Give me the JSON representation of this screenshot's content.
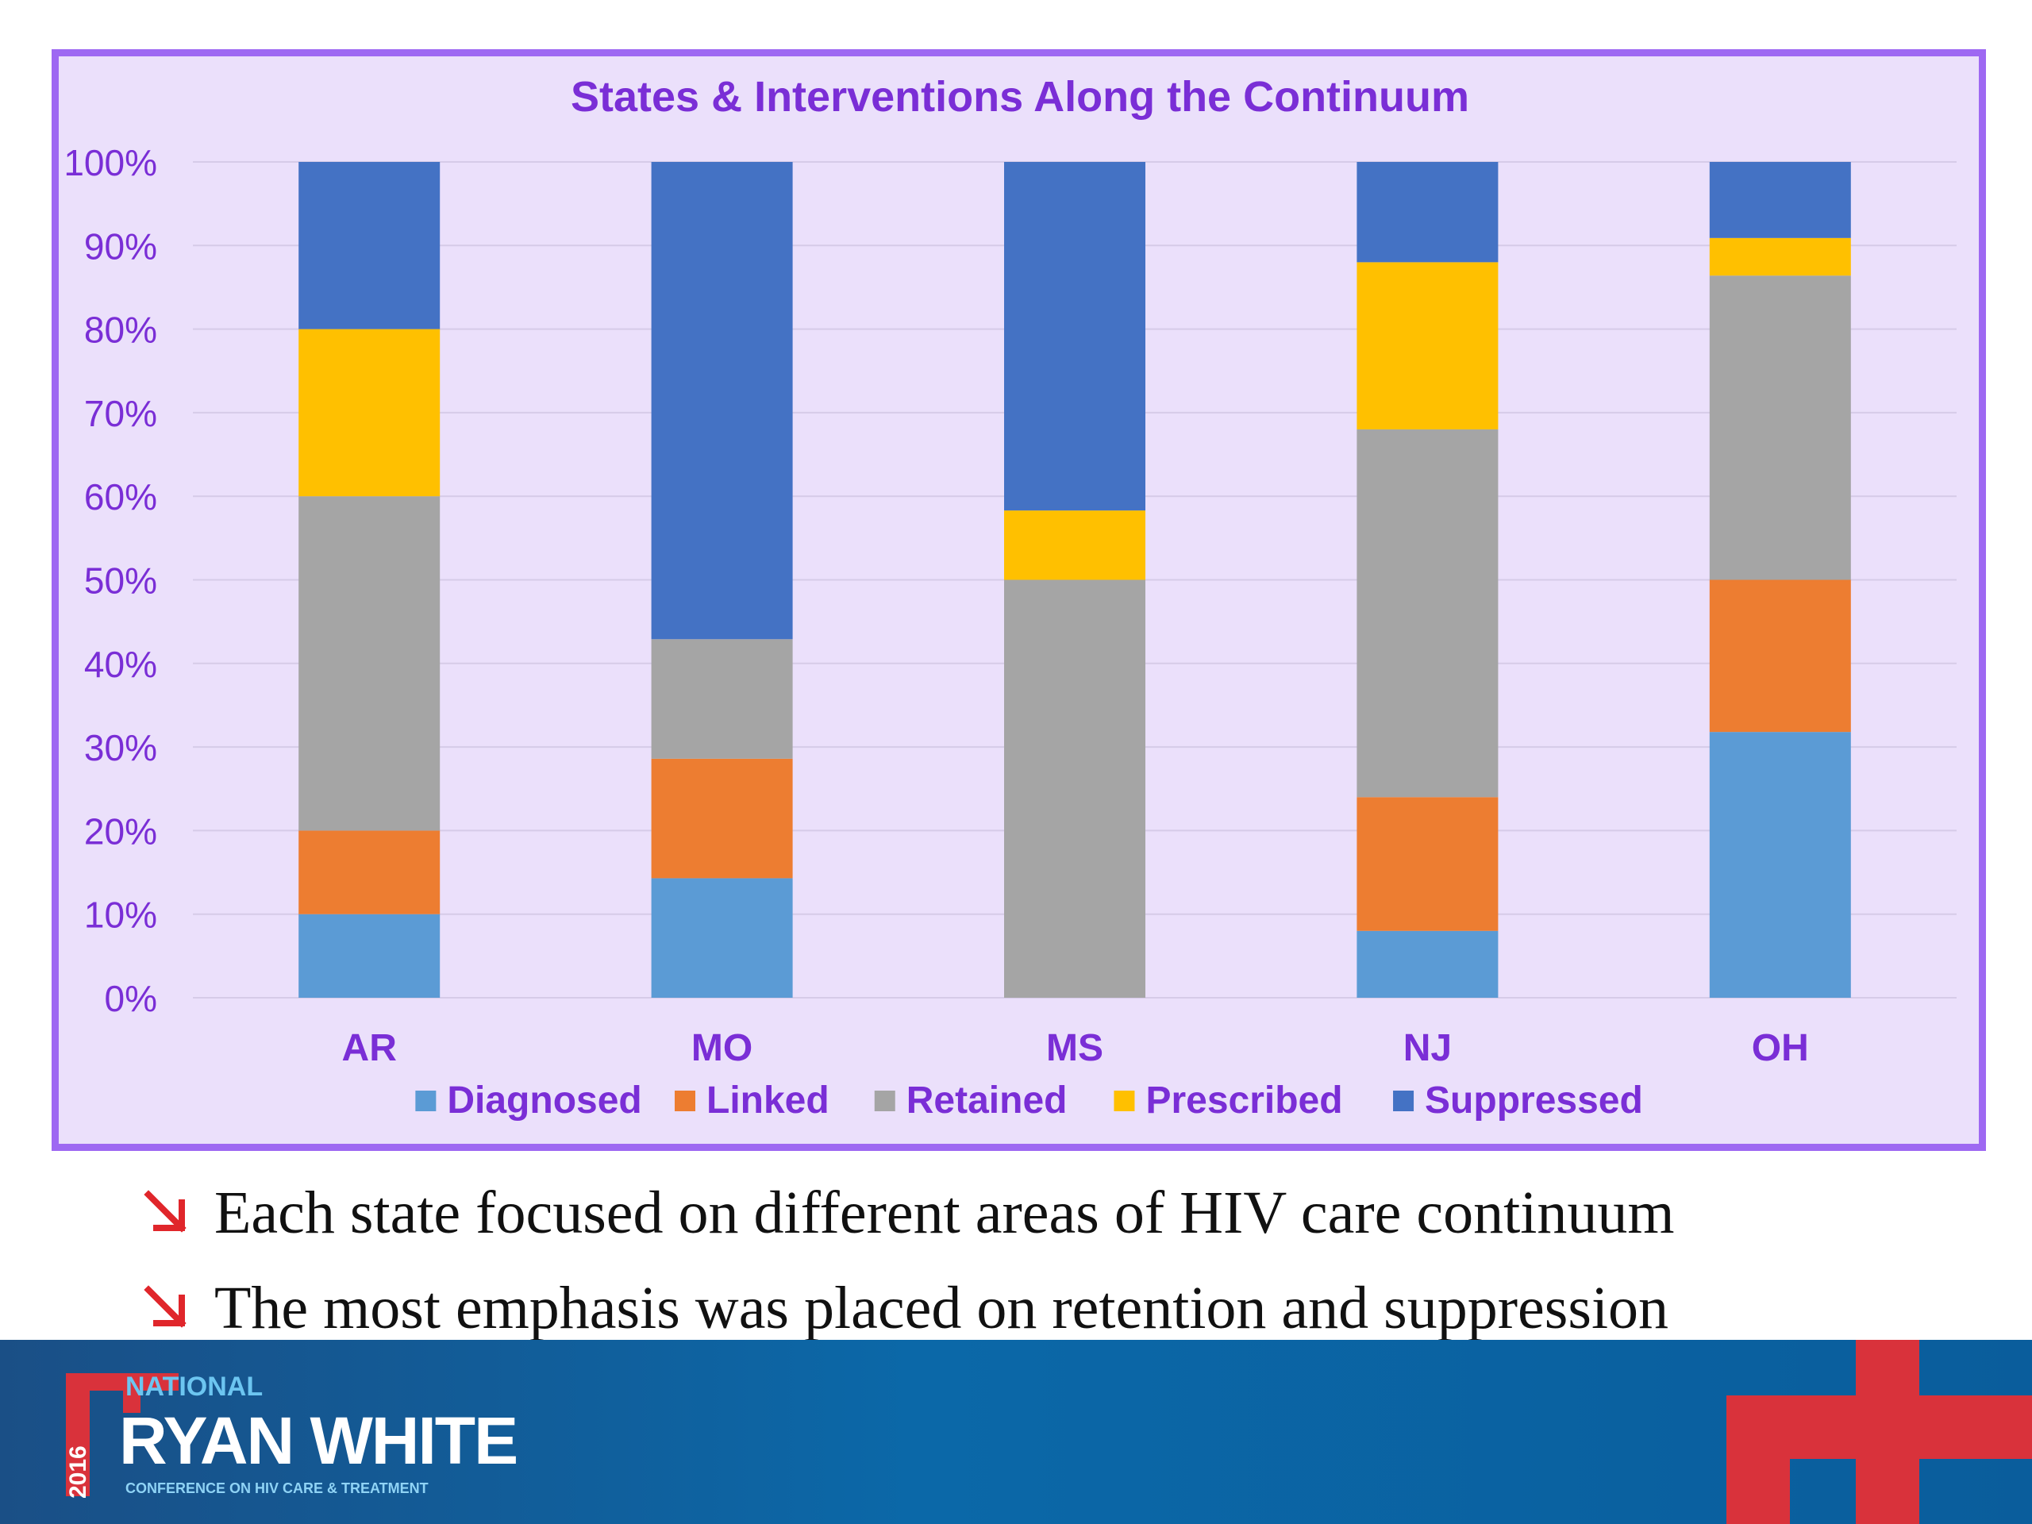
{
  "chart_data": {
    "type": "bar",
    "stacked": true,
    "title": "States & Interventions Along the Continuum",
    "categories": [
      "AR",
      "MO",
      "MS",
      "NJ",
      "OH"
    ],
    "series": [
      {
        "name": "Diagnosed",
        "color": "#5b9bd5",
        "values": [
          10,
          14.3,
          0,
          8,
          31.8
        ]
      },
      {
        "name": "Linked",
        "color": "#ed7d31",
        "values": [
          10,
          14.3,
          0,
          16,
          18.2
        ]
      },
      {
        "name": "Retained",
        "color": "#a5a5a5",
        "values": [
          40,
          14.3,
          50,
          44,
          36.4
        ]
      },
      {
        "name": "Prescribed",
        "color": "#ffc000",
        "values": [
          20,
          0,
          8.3,
          20,
          4.5
        ]
      },
      {
        "name": "Suppressed",
        "color": "#4472c4",
        "values": [
          20,
          57.1,
          41.7,
          12,
          9.1
        ]
      }
    ],
    "ylim": [
      0,
      100
    ],
    "yticks": [
      "0%",
      "10%",
      "20%",
      "30%",
      "40%",
      "50%",
      "60%",
      "70%",
      "80%",
      "90%",
      "100%"
    ],
    "grid": true,
    "legend": "bottom"
  },
  "colors": {
    "panel_background": "#ebe0fb",
    "panel_border": "#9e68f2",
    "text_purple": "#7a2ed6",
    "bullet_arrow": "#e0262b",
    "footer_blue": "#0b68a8",
    "logo_red": "#d9323b"
  },
  "bullets": [
    {
      "icon": "arrow-down-right-icon",
      "text": "Each state focused on different areas of HIV care continuum"
    },
    {
      "icon": "arrow-down-right-icon",
      "text": "The most emphasis was placed on retention and suppression"
    }
  ],
  "footer": {
    "logo_national": "NATIONAL",
    "logo_name": "RYAN WHITE",
    "logo_subtitle": "CONFERENCE ON HIV CARE & TREATMENT",
    "logo_year": "2016"
  }
}
